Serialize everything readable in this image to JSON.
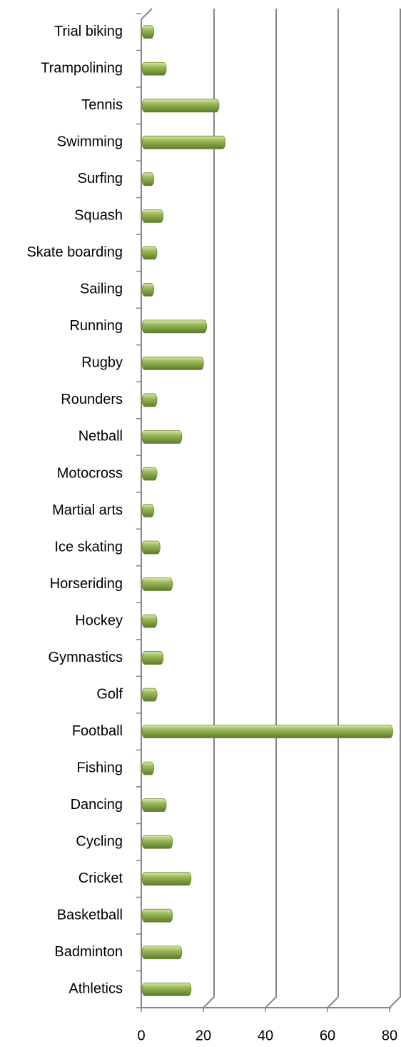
{
  "chart_data": {
    "type": "bar",
    "orientation": "horizontal",
    "categories": [
      "Trial biking",
      "Trampolining",
      "Tennis",
      "Swimming",
      "Surfing",
      "Squash",
      "Skate boarding",
      "Sailing",
      "Running",
      "Rugby",
      "Rounders",
      "Netball",
      "Motocross",
      "Martial arts",
      "Ice skating",
      "Horseriding",
      "Hockey",
      "Gymnastics",
      "Golf",
      "Football",
      "Fishing",
      "Dancing",
      "Cycling",
      "Cricket",
      "Basketball",
      "Badminton",
      "Athletics"
    ],
    "values": [
      2,
      6,
      23,
      25,
      2,
      5,
      3,
      2,
      19,
      18,
      3,
      11,
      3,
      2,
      4,
      8,
      3,
      5,
      3,
      79,
      2,
      6,
      8,
      14,
      8,
      11,
      14
    ],
    "color": "#9bbb59",
    "xlim": [
      0,
      80
    ],
    "xticks": [
      0,
      20,
      40,
      60,
      80
    ],
    "grid": true
  }
}
